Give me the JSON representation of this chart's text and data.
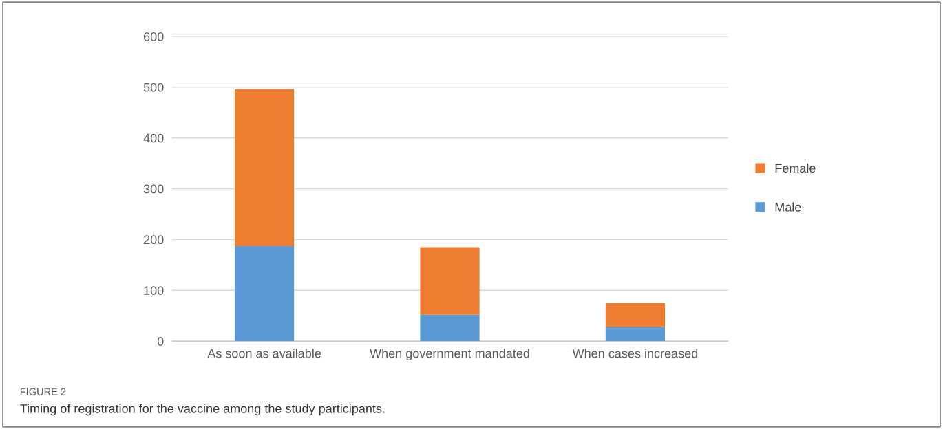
{
  "chart_data": {
    "type": "bar",
    "stacked": true,
    "categories": [
      "As soon as available",
      "When government mandated",
      "When cases increased"
    ],
    "series": [
      {
        "name": "Male",
        "color": "#5b9bd5",
        "values": [
          187,
          52,
          28
        ]
      },
      {
        "name": "Female",
        "color": "#ed7d31",
        "values": [
          309,
          133,
          47
        ]
      }
    ],
    "ylim": [
      0,
      600
    ],
    "yticks": [
      0,
      100,
      200,
      300,
      400,
      500,
      600
    ],
    "grid": "y",
    "legend": "right",
    "annotations": [
      "FIGURE 2",
      "Timing of registration for the vaccine among the study participants."
    ]
  }
}
